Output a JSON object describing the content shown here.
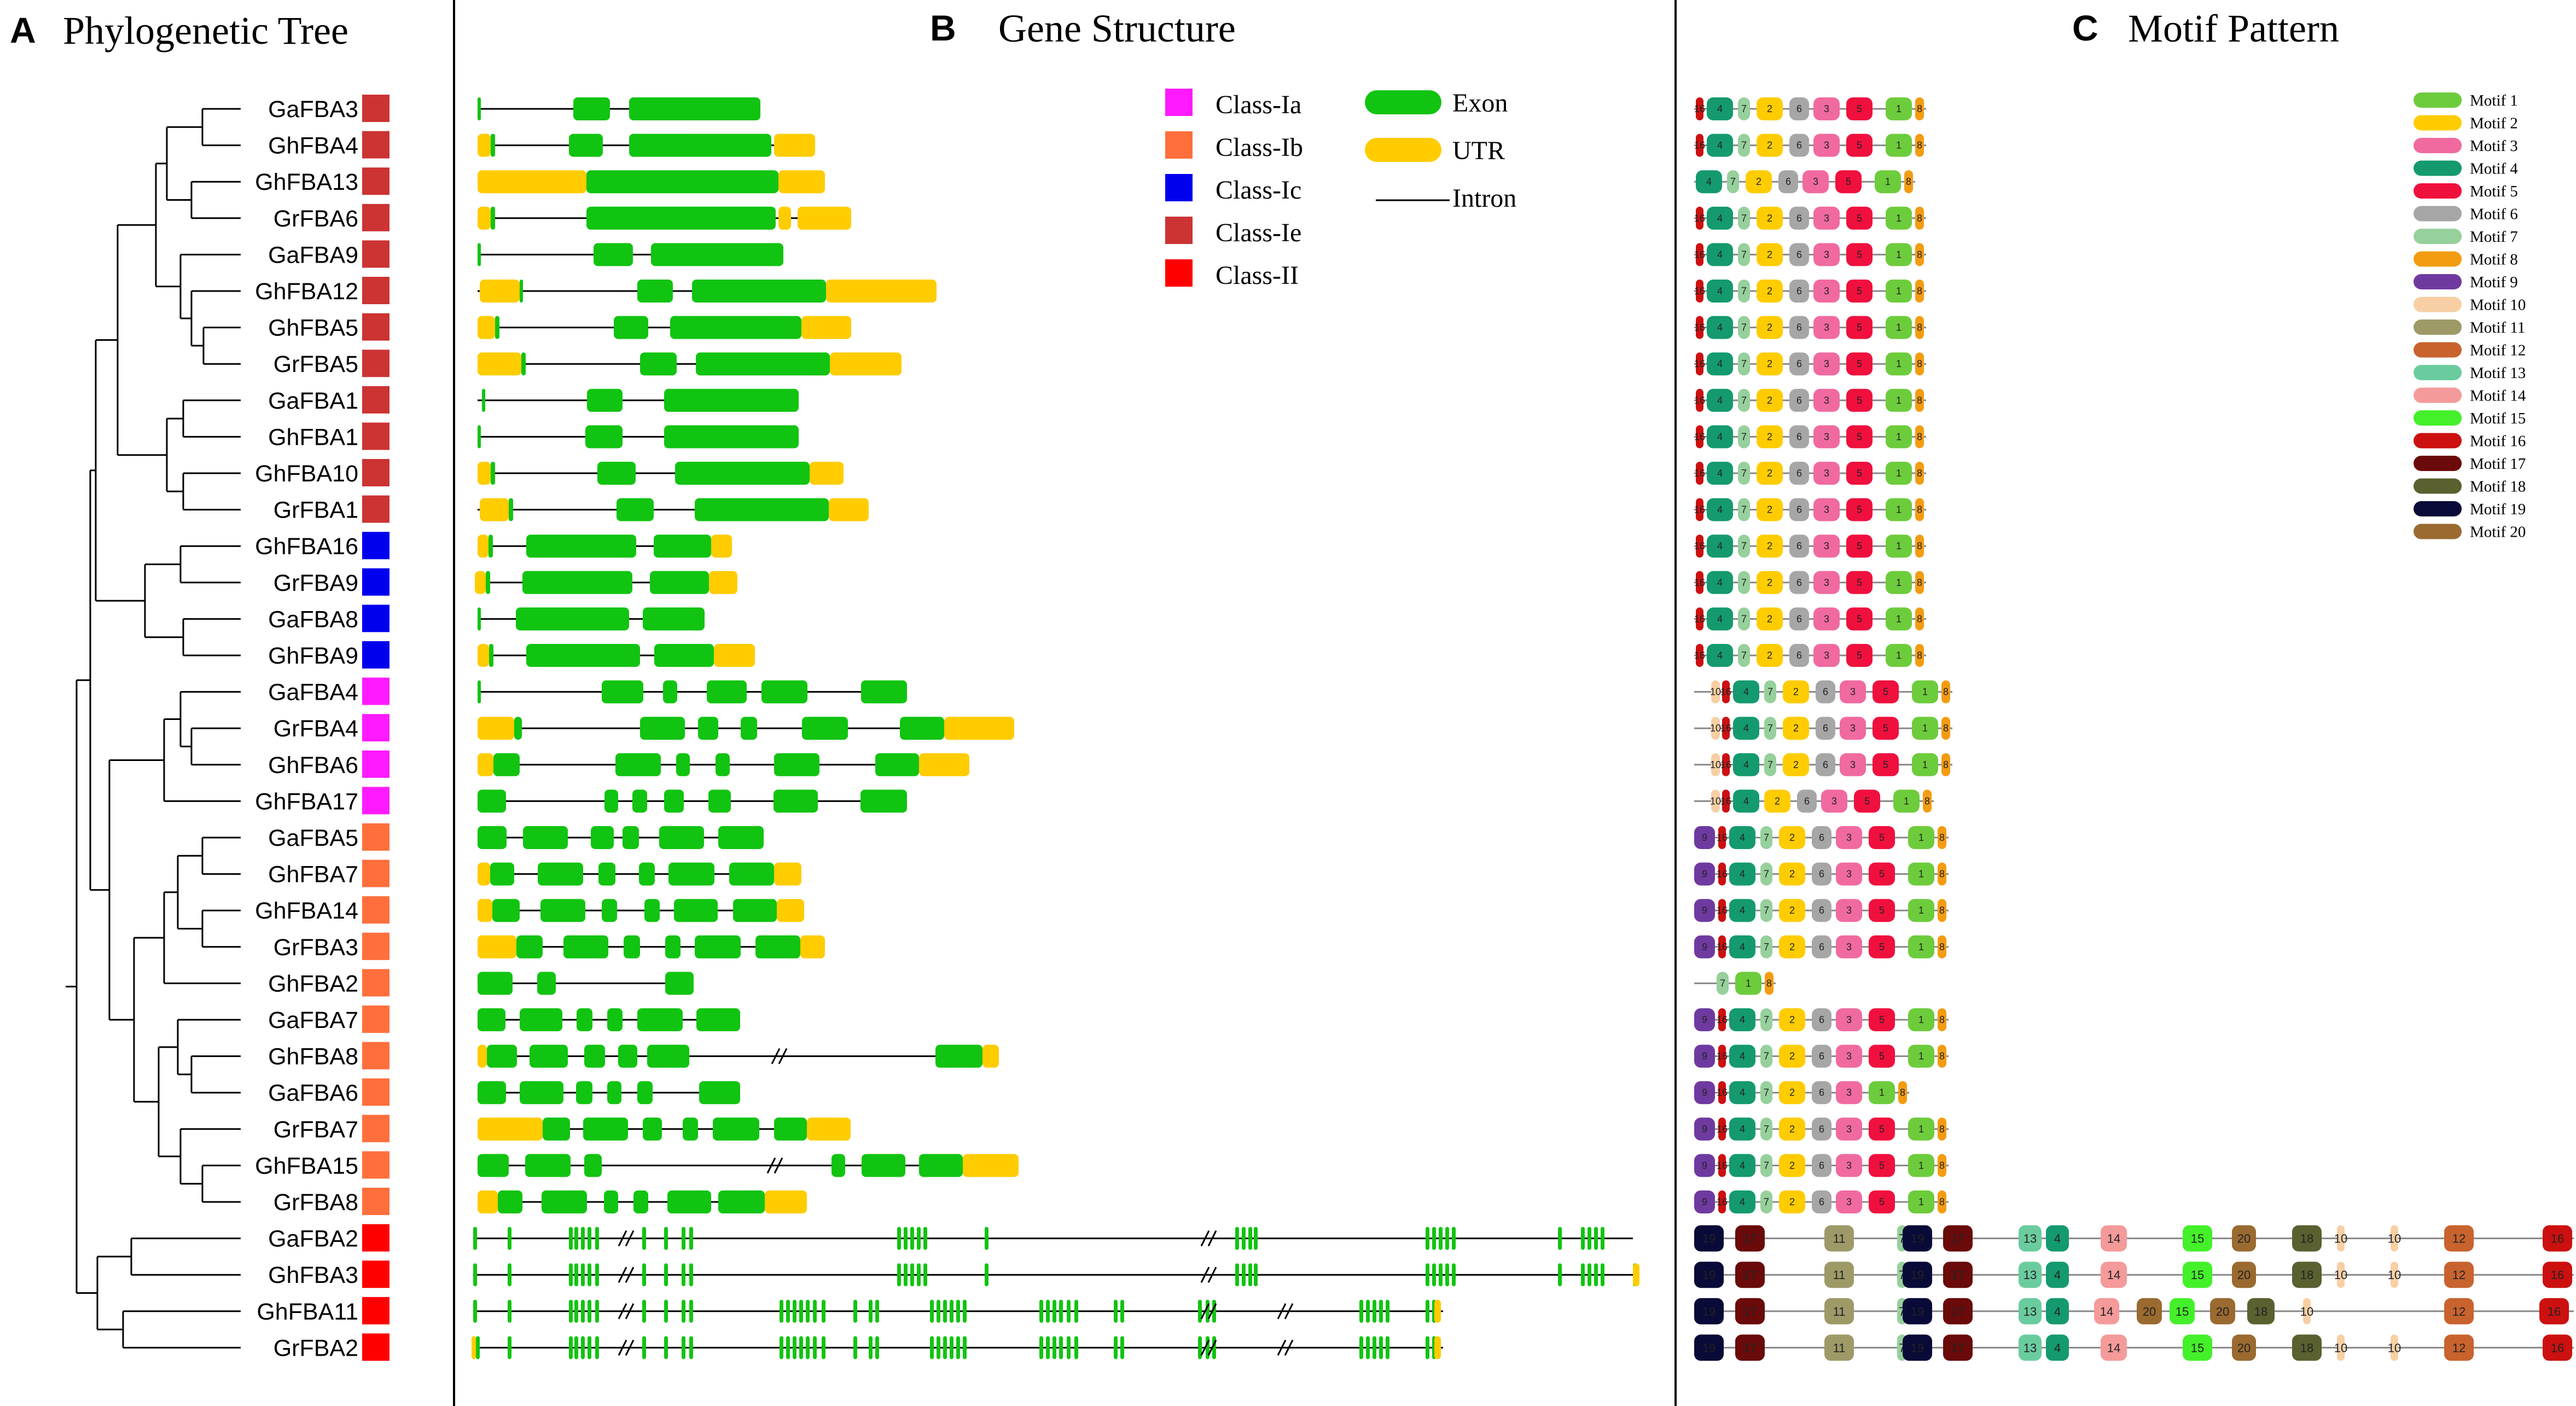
{
  "panels": {
    "a": {
      "letter": "A",
      "title": "Phylogenetic Tree"
    },
    "b": {
      "letter": "B",
      "title": "Gene Structure"
    },
    "c": {
      "letter": "C",
      "title": "Motif Pattern"
    }
  },
  "class_legend": [
    {
      "label": "Class-Ia",
      "color": "#ff1aff"
    },
    {
      "label": "Class-Ib",
      "color": "#ff6f3c"
    },
    {
      "label": "Class-Ic",
      "color": "#0000ee"
    },
    {
      "label": "Class-Ie",
      "color": "#cc3333"
    },
    {
      "label": "Class-II",
      "color": "#ff0000"
    }
  ],
  "structure_legend": {
    "exon": {
      "label": "Exon",
      "color": "#11c411"
    },
    "utr": {
      "label": "UTR",
      "color": "#ffcc00"
    },
    "intron": {
      "label": "Intron"
    }
  },
  "motif_legend": [
    {
      "label": "Motif 1",
      "color": "#6dcc3c",
      "num": "1"
    },
    {
      "label": "Motif 2",
      "color": "#ffcc00",
      "num": "2"
    },
    {
      "label": "Motif 3",
      "color": "#f06aa0",
      "num": "3"
    },
    {
      "label": "Motif 4",
      "color": "#149a6e",
      "num": "4"
    },
    {
      "label": "Motif 5",
      "color": "#f0103e",
      "num": "5"
    },
    {
      "label": "Motif 6",
      "color": "#a6a6a6",
      "num": "6"
    },
    {
      "label": "Motif 7",
      "color": "#96d09c",
      "num": "7"
    },
    {
      "label": "Motif 8",
      "color": "#f39c12",
      "num": "8"
    },
    {
      "label": "Motif 9",
      "color": "#6f3aa0",
      "num": "9"
    },
    {
      "label": "Motif 10",
      "color": "#f8cfa4",
      "num": "10"
    },
    {
      "label": "Motif 11",
      "color": "#9e9a68",
      "num": "11"
    },
    {
      "label": "Motif 12",
      "color": "#c8632e",
      "num": "12"
    },
    {
      "label": "Motif 13",
      "color": "#6acc9e",
      "num": "13"
    },
    {
      "label": "Motif 14",
      "color": "#f59a9a",
      "num": "14"
    },
    {
      "label": "Motif 15",
      "color": "#44f02a",
      "num": "15"
    },
    {
      "label": "Motif 16",
      "color": "#cc1010",
      "num": "16"
    },
    {
      "label": "Motif 17",
      "color": "#6a0a0a",
      "num": "17"
    },
    {
      "label": "Motif 18",
      "color": "#5a6030",
      "num": "18"
    },
    {
      "label": "Motif 19",
      "color": "#0a0a38",
      "num": "19"
    },
    {
      "label": "Motif 20",
      "color": "#9a6a30",
      "num": "20"
    }
  ],
  "genes": [
    {
      "name": "GaFBA3",
      "class": "Class-Ie",
      "type": "short",
      "motifs": [
        "16",
        "4",
        "7",
        "2",
        "6",
        "3",
        "5",
        "1",
        "8"
      ]
    },
    {
      "name": "GhFBA4",
      "class": "Class-Ie",
      "type": "short",
      "motifs": [
        "16",
        "4",
        "7",
        "2",
        "6",
        "3",
        "5",
        "1",
        "8"
      ]
    },
    {
      "name": "GhFBA13",
      "class": "Class-Ie",
      "type": "short",
      "motifs": [
        "4",
        "7",
        "2",
        "6",
        "3",
        "5",
        "1",
        "8"
      ]
    },
    {
      "name": "GrFBA6",
      "class": "Class-Ie",
      "type": "short",
      "motifs": [
        "16",
        "4",
        "7",
        "2",
        "6",
        "3",
        "5",
        "1",
        "8"
      ]
    },
    {
      "name": "GaFBA9",
      "class": "Class-Ie",
      "type": "short",
      "motifs": [
        "16",
        "4",
        "7",
        "2",
        "6",
        "3",
        "5",
        "1",
        "8"
      ]
    },
    {
      "name": "GhFBA12",
      "class": "Class-Ie",
      "type": "short",
      "motifs": [
        "16",
        "4",
        "7",
        "2",
        "6",
        "3",
        "5",
        "1",
        "8"
      ]
    },
    {
      "name": "GhFBA5",
      "class": "Class-Ie",
      "type": "short",
      "motifs": [
        "16",
        "4",
        "7",
        "2",
        "6",
        "3",
        "5",
        "1",
        "8"
      ]
    },
    {
      "name": "GrFBA5",
      "class": "Class-Ie",
      "type": "short",
      "motifs": [
        "16",
        "4",
        "7",
        "2",
        "6",
        "3",
        "5",
        "1",
        "8"
      ]
    },
    {
      "name": "GaFBA1",
      "class": "Class-Ie",
      "type": "short",
      "motifs": [
        "16",
        "4",
        "7",
        "2",
        "6",
        "3",
        "5",
        "1",
        "8"
      ]
    },
    {
      "name": "GhFBA1",
      "class": "Class-Ie",
      "type": "short",
      "motifs": [
        "16",
        "4",
        "7",
        "2",
        "6",
        "3",
        "5",
        "1",
        "8"
      ]
    },
    {
      "name": "GhFBA10",
      "class": "Class-Ie",
      "type": "short",
      "motifs": [
        "16",
        "4",
        "7",
        "2",
        "6",
        "3",
        "5",
        "1",
        "8"
      ]
    },
    {
      "name": "GrFBA1",
      "class": "Class-Ie",
      "type": "short",
      "motifs": [
        "16",
        "4",
        "7",
        "2",
        "6",
        "3",
        "5",
        "1",
        "8"
      ]
    },
    {
      "name": "GhFBA16",
      "class": "Class-Ic",
      "type": "short",
      "motifs": [
        "16",
        "4",
        "7",
        "2",
        "6",
        "3",
        "5",
        "1",
        "8"
      ]
    },
    {
      "name": "GrFBA9",
      "class": "Class-Ic",
      "type": "short",
      "motifs": [
        "16",
        "4",
        "7",
        "2",
        "6",
        "3",
        "5",
        "1",
        "8"
      ]
    },
    {
      "name": "GaFBA8",
      "class": "Class-Ic",
      "type": "short",
      "motifs": [
        "16",
        "4",
        "7",
        "2",
        "6",
        "3",
        "5",
        "1",
        "8"
      ]
    },
    {
      "name": "GhFBA9",
      "class": "Class-Ic",
      "type": "short",
      "motifs": [
        "16",
        "4",
        "7",
        "2",
        "6",
        "3",
        "5",
        "1",
        "8"
      ]
    },
    {
      "name": "GaFBA4",
      "class": "Class-Ia",
      "type": "multi",
      "motifs": [
        "10",
        "16",
        "4",
        "7",
        "2",
        "6",
        "3",
        "5",
        "1",
        "8"
      ]
    },
    {
      "name": "GrFBA4",
      "class": "Class-Ia",
      "type": "multi",
      "motifs": [
        "10",
        "16",
        "4",
        "7",
        "2",
        "6",
        "3",
        "5",
        "1",
        "8"
      ]
    },
    {
      "name": "GhFBA6",
      "class": "Class-Ia",
      "type": "multi",
      "motifs": [
        "10",
        "16",
        "4",
        "7",
        "2",
        "6",
        "3",
        "5",
        "1",
        "8"
      ]
    },
    {
      "name": "GhFBA17",
      "class": "Class-Ia",
      "type": "multi",
      "motifs": [
        "10",
        "16",
        "4",
        "2",
        "6",
        "3",
        "5",
        "1",
        "8"
      ]
    },
    {
      "name": "GaFBA5",
      "class": "Class-Ib",
      "type": "multi",
      "motifs": [
        "9",
        "16",
        "4",
        "7",
        "2",
        "6",
        "3",
        "5",
        "1",
        "8"
      ]
    },
    {
      "name": "GhFBA7",
      "class": "Class-Ib",
      "type": "multi",
      "motifs": [
        "9",
        "16",
        "4",
        "7",
        "2",
        "6",
        "3",
        "5",
        "1",
        "8"
      ]
    },
    {
      "name": "GhFBA14",
      "class": "Class-Ib",
      "type": "multi",
      "motifs": [
        "9",
        "16",
        "4",
        "7",
        "2",
        "6",
        "3",
        "5",
        "1",
        "8"
      ]
    },
    {
      "name": "GrFBA3",
      "class": "Class-Ib",
      "type": "multi",
      "motifs": [
        "9",
        "16",
        "4",
        "7",
        "2",
        "6",
        "3",
        "5",
        "1",
        "8"
      ]
    },
    {
      "name": "GhFBA2",
      "class": "Class-Ib",
      "type": "multi",
      "motifs": [
        "7",
        "1",
        "8"
      ]
    },
    {
      "name": "GaFBA7",
      "class": "Class-Ib",
      "type": "multi",
      "motifs": [
        "9",
        "16",
        "4",
        "7",
        "2",
        "6",
        "3",
        "5",
        "1",
        "8"
      ]
    },
    {
      "name": "GhFBA8",
      "class": "Class-Ib",
      "type": "multi",
      "motifs": [
        "9",
        "16",
        "4",
        "7",
        "2",
        "6",
        "3",
        "5",
        "1",
        "8"
      ]
    },
    {
      "name": "GaFBA6",
      "class": "Class-Ib",
      "type": "multi",
      "motifs": [
        "9",
        "16",
        "4",
        "7",
        "2",
        "6",
        "3",
        "1",
        "8"
      ]
    },
    {
      "name": "GrFBA7",
      "class": "Class-Ib",
      "type": "multi",
      "motifs": [
        "9",
        "16",
        "4",
        "7",
        "2",
        "6",
        "3",
        "5",
        "1",
        "8"
      ]
    },
    {
      "name": "GhFBA15",
      "class": "Class-Ib",
      "type": "multi",
      "motifs": [
        "9",
        "16",
        "4",
        "7",
        "2",
        "6",
        "3",
        "5",
        "1",
        "8"
      ]
    },
    {
      "name": "GrFBA8",
      "class": "Class-Ib",
      "type": "multi",
      "motifs": [
        "9",
        "16",
        "4",
        "7",
        "2",
        "6",
        "3",
        "5",
        "1",
        "8"
      ]
    },
    {
      "name": "GaFBA2",
      "class": "Class-II",
      "type": "long",
      "motifs": [
        "19",
        "17",
        "11",
        "7",
        "19",
        "17",
        "13",
        "4",
        "14",
        "15",
        "20",
        "18",
        "10",
        "10",
        "12",
        "16"
      ]
    },
    {
      "name": "GhFBA3",
      "class": "Class-II",
      "type": "long",
      "motifs": [
        "19",
        "17",
        "11",
        "7",
        "19",
        "17",
        "13",
        "4",
        "14",
        "15",
        "20",
        "18",
        "10",
        "10",
        "12",
        "16"
      ]
    },
    {
      "name": "GhFBA11",
      "class": "Class-II",
      "type": "long",
      "motifs": [
        "19",
        "17",
        "11",
        "7",
        "19",
        "17",
        "13",
        "4",
        "14",
        "20",
        "15",
        "20",
        "18",
        "10",
        "12",
        "16"
      ]
    },
    {
      "name": "GrFBA2",
      "class": "Class-II",
      "type": "long",
      "motifs": [
        "19",
        "17",
        "11",
        "7",
        "19",
        "17",
        "13",
        "4",
        "14",
        "15",
        "20",
        "18",
        "10",
        "10",
        "12",
        "16"
      ]
    }
  ]
}
